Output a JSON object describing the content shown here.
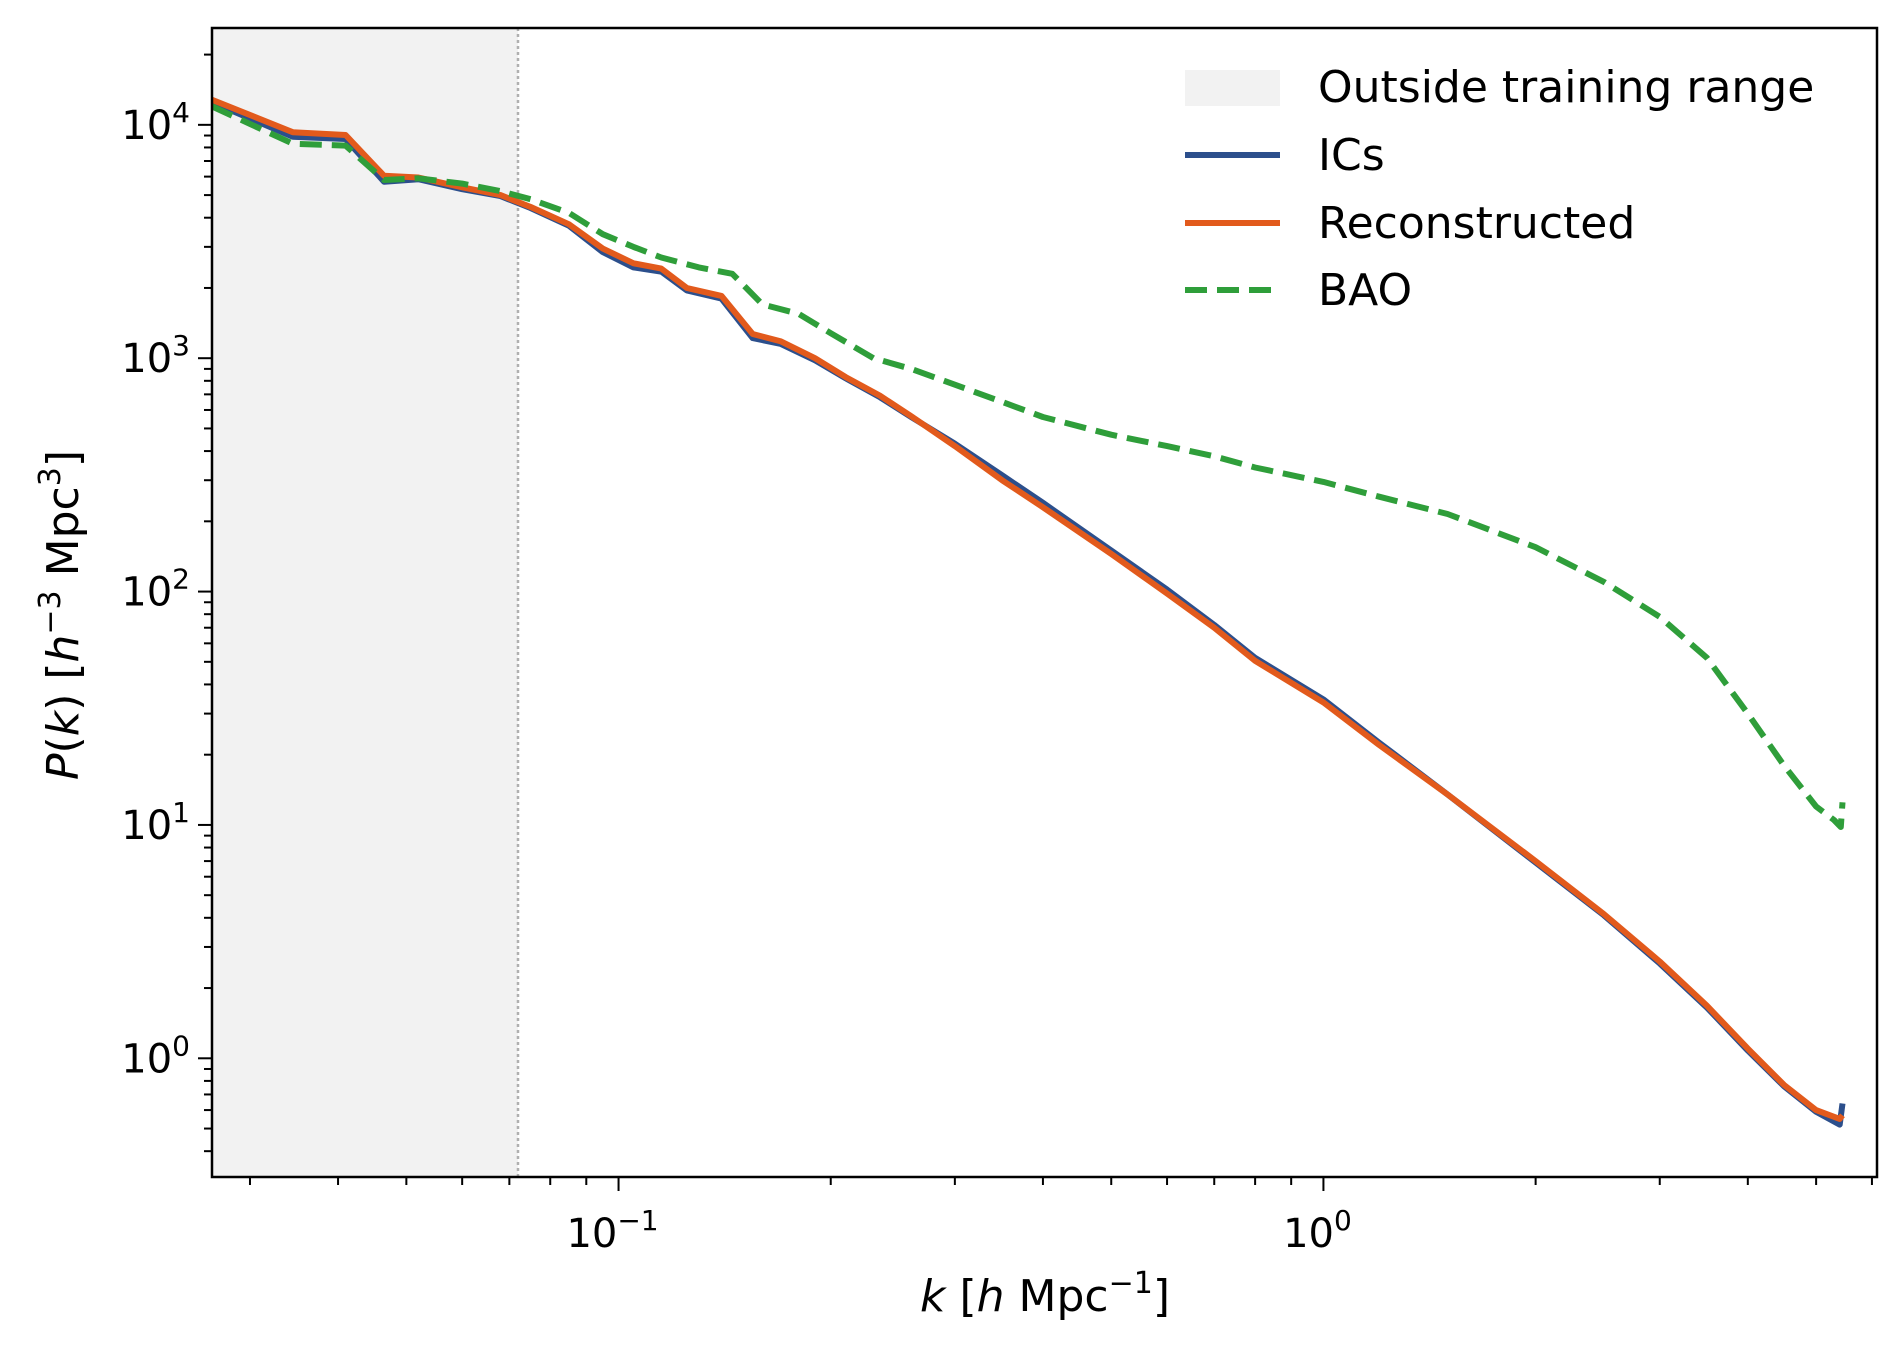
{
  "chart_data": {
    "type": "line",
    "xscale": "log",
    "yscale": "log",
    "xlim": [
      0.0265,
      6.1
    ],
    "ylim": [
      0.31,
      26000
    ],
    "xlabel": {
      "main": "k [h Mpc",
      "exp": "−1",
      "tail": "]"
    },
    "ylabel": {
      "main": "P(k) [h",
      "exp1": "−3",
      "mid": " Mpc",
      "exp2": "3",
      "tail": "]"
    },
    "x_ticks": [
      {
        "value": 0.1,
        "base": "10",
        "exp": "−1"
      },
      {
        "value": 1,
        "base": "10",
        "exp": "0"
      }
    ],
    "y_ticks": [
      {
        "value": 1,
        "base": "10",
        "exp": "0"
      },
      {
        "value": 10,
        "base": "10",
        "exp": "1"
      },
      {
        "value": 100,
        "base": "10",
        "exp": "2"
      },
      {
        "value": 1000,
        "base": "10",
        "exp": "3"
      },
      {
        "value": 10000,
        "base": "10",
        "exp": "4"
      }
    ],
    "shaded_region": {
      "label": "Outside training range",
      "x": [
        0.0265,
        0.072
      ],
      "color": "#f2f2f2",
      "edge_color": "#b0b0b0"
    },
    "grid": false,
    "legend_position": "top-right",
    "series": [
      {
        "name": "ICs",
        "color": "#2c4f8c",
        "style": "solid",
        "x": [
          0.0265,
          0.0345,
          0.041,
          0.0465,
          0.052,
          0.06,
          0.068,
          0.075,
          0.085,
          0.095,
          0.105,
          0.115,
          0.125,
          0.14,
          0.155,
          0.17,
          0.19,
          0.21,
          0.235,
          0.26,
          0.3,
          0.35,
          0.4,
          0.5,
          0.6,
          0.7,
          0.8,
          1.0,
          1.2,
          1.5,
          2.0,
          2.5,
          3.0,
          3.5,
          4.0,
          4.5,
          5.0,
          5.4,
          5.45
        ],
        "y": [
          12500,
          8900,
          8700,
          5700,
          5850,
          5300,
          4950,
          4400,
          3700,
          2850,
          2450,
          2350,
          1950,
          1800,
          1220,
          1150,
          980,
          820,
          680,
          560,
          430,
          315,
          240,
          150,
          102,
          72,
          52,
          34.5,
          22.5,
          13.5,
          6.9,
          4.1,
          2.55,
          1.65,
          1.08,
          0.76,
          0.59,
          0.52,
          0.64
        ]
      },
      {
        "name": "Reconstructed",
        "color": "#e25a1c",
        "style": "solid",
        "x": [
          0.0265,
          0.0345,
          0.041,
          0.0465,
          0.052,
          0.06,
          0.068,
          0.075,
          0.085,
          0.095,
          0.105,
          0.115,
          0.125,
          0.14,
          0.155,
          0.17,
          0.19,
          0.21,
          0.235,
          0.26,
          0.3,
          0.35,
          0.4,
          0.5,
          0.6,
          0.7,
          0.8,
          1.0,
          1.2,
          1.5,
          2.0,
          2.5,
          3.0,
          3.5,
          4.0,
          4.5,
          5.0,
          5.4,
          5.45
        ],
        "y": [
          12800,
          9300,
          9050,
          6050,
          5950,
          5400,
          5000,
          4450,
          3750,
          2950,
          2550,
          2420,
          2000,
          1850,
          1270,
          1180,
          1000,
          830,
          690,
          565,
          420,
          300,
          230,
          145,
          98,
          70,
          50.5,
          33.5,
          22,
          13.5,
          7.0,
          4.15,
          2.6,
          1.68,
          1.1,
          0.77,
          0.6,
          0.55,
          0.57
        ]
      },
      {
        "name": "BAO",
        "color": "#2f9e3a",
        "style": "dashed",
        "x": [
          0.0265,
          0.0345,
          0.041,
          0.0465,
          0.052,
          0.06,
          0.068,
          0.075,
          0.085,
          0.095,
          0.105,
          0.115,
          0.13,
          0.145,
          0.16,
          0.18,
          0.2,
          0.23,
          0.26,
          0.3,
          0.35,
          0.4,
          0.5,
          0.6,
          0.7,
          0.8,
          1.0,
          1.2,
          1.5,
          2.0,
          2.5,
          3.0,
          3.5,
          4.0,
          4.5,
          5.0,
          5.3,
          5.42,
          5.45
        ],
        "y": [
          12000,
          8300,
          8150,
          5800,
          5900,
          5600,
          5200,
          4800,
          4200,
          3400,
          3000,
          2700,
          2450,
          2300,
          1700,
          1550,
          1280,
          1000,
          900,
          770,
          650,
          560,
          470,
          420,
          380,
          340,
          295,
          255,
          215,
          155,
          110,
          78,
          52,
          30,
          18,
          12,
          10.5,
          9.8,
          12.5
        ]
      }
    ]
  }
}
